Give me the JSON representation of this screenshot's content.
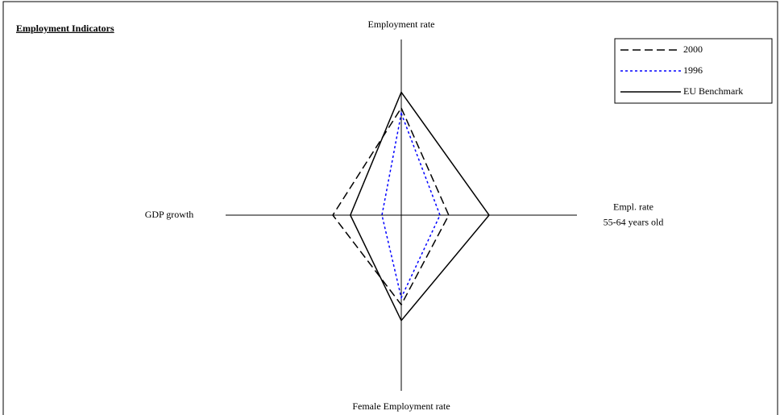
{
  "chart_data": {
    "type": "radar",
    "title": "Employment Indicators",
    "categories": [
      "Employment rate",
      "Empl. rate\n55-64 years old",
      "Female Employment rate",
      "GDP growth"
    ],
    "series": [
      {
        "name": "2000",
        "color": "#000000",
        "dash": "dashed",
        "values": [
          61,
          27,
          51,
          39
        ]
      },
      {
        "name": "1996",
        "color": "#0000ff",
        "dash": "dotted",
        "values": [
          58,
          22,
          47,
          11
        ]
      },
      {
        "name": "EU Benchmark",
        "color": "#000000",
        "dash": "solid",
        "values": [
          70,
          50,
          60,
          29
        ]
      }
    ],
    "ylim": [
      0,
      100
    ],
    "legend": "top-right"
  }
}
